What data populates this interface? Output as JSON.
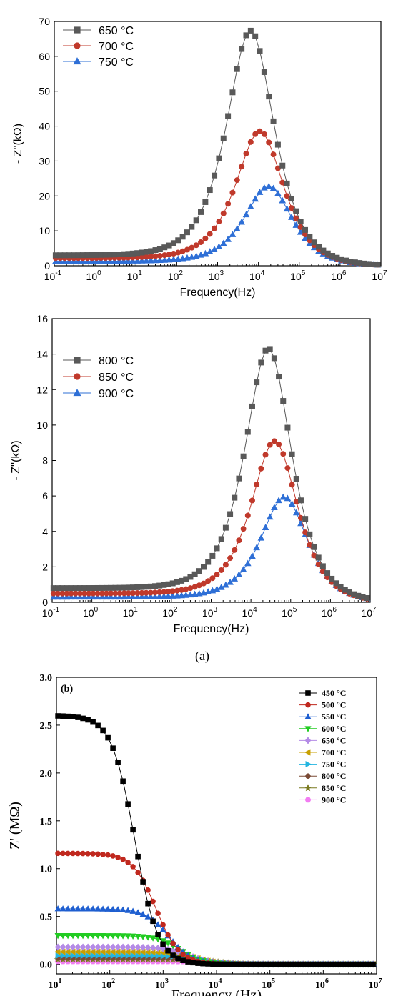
{
  "caption_a": "(a)",
  "chart_data": [
    {
      "type": "line",
      "panel": "a-top",
      "title": "",
      "xlabel": "Frequency(Hz)",
      "ylabel": "- Z''(kΩ)",
      "xscale": "log",
      "xlim": [
        0.1,
        10000000
      ],
      "ylim": [
        0,
        70
      ],
      "yticks": [
        "0",
        "10",
        "20",
        "30",
        "40",
        "50",
        "60",
        "70"
      ],
      "xtick_exponents": [
        "-1",
        "0",
        "1",
        "2",
        "3",
        "4",
        "5",
        "6",
        "7"
      ],
      "legend_position": "top-left",
      "series": [
        {
          "name": "650 °C",
          "color": "#595959",
          "marker": "square",
          "peak_x": 6500,
          "peak_y": 68,
          "base_y": 3.0,
          "width": 0.5
        },
        {
          "name": "700 °C",
          "color": "#c0392b",
          "marker": "circle",
          "peak_x": 11000,
          "peak_y": 39,
          "base_y": 2.2,
          "width": 0.5
        },
        {
          "name": "750 °C",
          "color": "#2e6fd6",
          "marker": "triangle",
          "peak_x": 18000,
          "peak_y": 23,
          "base_y": 1.3,
          "width": 0.5
        }
      ]
    },
    {
      "type": "line",
      "panel": "a-bottom",
      "title": "",
      "xlabel": "Frequency(Hz)",
      "ylabel": "- Z''(kΩ)",
      "xscale": "log",
      "xlim": [
        0.1,
        10000000
      ],
      "ylim": [
        0,
        16
      ],
      "yticks": [
        "0",
        "2",
        "4",
        "6",
        "8",
        "10",
        "12",
        "14",
        "16"
      ],
      "xtick_exponents": [
        "-1",
        "0",
        "1",
        "2",
        "3",
        "4",
        "5",
        "6",
        "7"
      ],
      "legend_position": "top-left",
      "series": [
        {
          "name": "800 °C",
          "color": "#595959",
          "marker": "square",
          "peak_x": 28000,
          "peak_y": 14.5,
          "base_y": 0.8,
          "width": 0.5
        },
        {
          "name": "850 °C",
          "color": "#c0392b",
          "marker": "circle",
          "peak_x": 40000,
          "peak_y": 9.2,
          "base_y": 0.5,
          "width": 0.5
        },
        {
          "name": "900 °C",
          "color": "#2e6fd6",
          "marker": "triangle",
          "peak_x": 70000,
          "peak_y": 6.0,
          "base_y": 0.3,
          "width": 0.5
        }
      ]
    },
    {
      "type": "line",
      "panel": "b",
      "title": "",
      "panel_label": "(b)",
      "xlabel": "Frequency (Hz)",
      "ylabel": "Z' (MΩ)",
      "xscale": "log",
      "xlim": [
        10,
        10000000
      ],
      "ylim": [
        -0.1,
        3.0
      ],
      "yticks": [
        "0.0",
        "0.5",
        "1.0",
        "1.5",
        "2.0",
        "2.5",
        "3.0"
      ],
      "xtick_exponents": [
        "1",
        "2",
        "3",
        "4",
        "5",
        "6",
        "7"
      ],
      "legend_position": "top-right",
      "series": [
        {
          "name": "450 °C",
          "color": "#000000",
          "marker": "square",
          "plateau": 2.6,
          "corner_x": 280
        },
        {
          "name": "500 °C",
          "color": "#c0281e",
          "marker": "circle",
          "plateau": 1.16,
          "corner_x": 700
        },
        {
          "name": "550 °C",
          "color": "#1f5fd0",
          "marker": "triangle",
          "plateau": 0.58,
          "corner_x": 1200
        },
        {
          "name": "600 °C",
          "color": "#22cc22",
          "marker": "triangle-down",
          "plateau": 0.3,
          "corner_x": 2000
        },
        {
          "name": "650 °C",
          "color": "#b48be6",
          "marker": "diamond",
          "plateau": 0.18,
          "corner_x": 3000
        },
        {
          "name": "700 °C",
          "color": "#c8a000",
          "marker": "triangle-left",
          "plateau": 0.13,
          "corner_x": 4000
        },
        {
          "name": "750 °C",
          "color": "#22b5e0",
          "marker": "triangle-right",
          "plateau": 0.09,
          "corner_x": 5000
        },
        {
          "name": "800 °C",
          "color": "#7a4a35",
          "marker": "circle",
          "plateau": 0.07,
          "corner_x": 7000
        },
        {
          "name": "850 °C",
          "color": "#7a7a20",
          "marker": "star",
          "plateau": 0.05,
          "corner_x": 9000
        },
        {
          "name": "900 °C",
          "color": "#f27cf2",
          "marker": "hexagon",
          "plateau": 0.03,
          "corner_x": 12000
        }
      ]
    }
  ]
}
